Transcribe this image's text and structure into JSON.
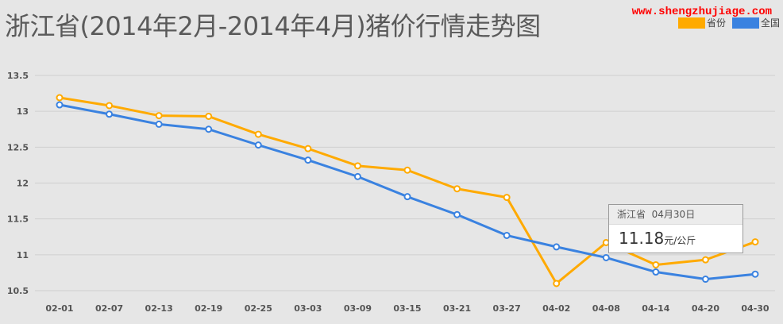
{
  "title": "浙江省(2014年2月-2014年4月)猪价行情走势图",
  "watermark": "www.shengzhujiage.com",
  "legend": [
    {
      "label": "省份",
      "color": "#ffaa00"
    },
    {
      "label": "全国",
      "color": "#3a82e0"
    }
  ],
  "tooltip": {
    "region": "浙江省",
    "date": "04月30日",
    "value": "11.18",
    "unit": "元/公斤"
  },
  "chart_data": {
    "type": "line",
    "categories": [
      "02-01",
      "02-07",
      "02-13",
      "02-19",
      "02-25",
      "03-03",
      "03-09",
      "03-15",
      "03-21",
      "03-27",
      "04-02",
      "04-08",
      "04-14",
      "04-20",
      "04-30"
    ],
    "y_ticks": [
      "10.5",
      "11",
      "11.5",
      "12",
      "12.5",
      "13",
      "13.5"
    ],
    "ylim": [
      10.5,
      13.5
    ],
    "grid": "horizontal",
    "legend_position": "top-right",
    "series": [
      {
        "name": "省份",
        "color": "#ffaa00",
        "values": [
          13.19,
          13.08,
          12.94,
          12.93,
          12.68,
          12.48,
          12.24,
          12.18,
          11.92,
          11.8,
          10.6,
          11.17,
          10.86,
          10.93,
          11.18
        ]
      },
      {
        "name": "全国",
        "color": "#3a82e0",
        "values": [
          13.09,
          12.96,
          12.82,
          12.75,
          12.53,
          12.32,
          12.09,
          11.81,
          11.56,
          11.27,
          11.11,
          10.96,
          10.76,
          10.66,
          10.73
        ]
      }
    ]
  }
}
